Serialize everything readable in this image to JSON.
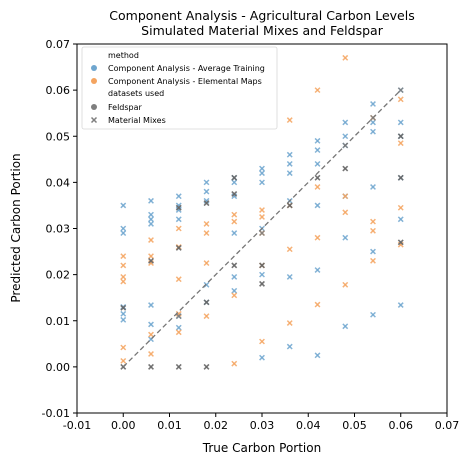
{
  "chart_data": {
    "type": "scatter",
    "title": "Component Analysis - Agricultural Carbon Levels",
    "subtitle": "Simulated Material Mixes and Feldspar",
    "xlabel": "True Carbon Portion",
    "ylabel": "Predicted Carbon Portion",
    "xlim": [
      -0.01,
      0.07
    ],
    "ylim": [
      -0.01,
      0.07
    ],
    "xticks": [
      "-0.01",
      "0.00",
      "0.01",
      "0.02",
      "0.03",
      "0.04",
      "0.05",
      "0.06",
      "0.07"
    ],
    "yticks": [
      "-0.01",
      "0.00",
      "0.01",
      "0.02",
      "0.03",
      "0.04",
      "0.05",
      "0.06",
      "0.07"
    ],
    "grid": false,
    "legend": {
      "placement": "top-left",
      "title_method": "method",
      "title_datasets": "datasets used",
      "entries": [
        {
          "label": "Component Analysis - Average Training",
          "color": "#6fa6cf",
          "marker": "circle"
        },
        {
          "label": "Component Analysis - Elemental Maps",
          "color": "#f4a460",
          "marker": "circle"
        },
        {
          "label": "Feldspar",
          "color": "#7f7f7f",
          "marker": "circle"
        },
        {
          "label": "Material Mixes",
          "color": "#7f7f7f",
          "marker": "x"
        }
      ]
    },
    "reference_line": {
      "x": [
        0,
        0.06
      ],
      "y": [
        0,
        0.06
      ],
      "style": "dashed",
      "color": "#777777"
    },
    "series": [
      {
        "name": "Component Analysis - Average Training",
        "color": "#6fa6cf",
        "x": [
          0,
          0,
          0,
          0,
          0,
          0,
          0.006,
          0.006,
          0.006,
          0.006,
          0.006,
          0.006,
          0.006,
          0.012,
          0.012,
          0.012,
          0.012,
          0.012,
          0.012,
          0.018,
          0.018,
          0.018,
          0.018,
          0.018,
          0.024,
          0.024,
          0.024,
          0.024,
          0.024,
          0.024,
          0.03,
          0.03,
          0.03,
          0.03,
          0.03,
          0.03,
          0.036,
          0.036,
          0.036,
          0.036,
          0.036,
          0.036,
          0.042,
          0.042,
          0.042,
          0.042,
          0.042,
          0.042,
          0.048,
          0.048,
          0.048,
          0.048,
          0.048,
          0.048,
          0.054,
          0.054,
          0.054,
          0.054,
          0.054,
          0.054,
          0.06,
          0.06,
          0.06,
          0.06,
          0.06,
          0.06
        ],
        "y": [
          0.035,
          0.03,
          0.029,
          0.0115,
          0.0102,
          0.013,
          0.036,
          0.033,
          0.032,
          0.031,
          0.0134,
          0.0092,
          0.006,
          0.037,
          0.035,
          0.034,
          0.032,
          0.011,
          0.0085,
          0.04,
          0.038,
          0.036,
          0.0178,
          0.014,
          0.041,
          0.04,
          0.037,
          0.029,
          0.0195,
          0.0165,
          0.043,
          0.042,
          0.04,
          0.03,
          0.02,
          0.002,
          0.046,
          0.044,
          0.042,
          0.036,
          0.0195,
          0.0044,
          0.049,
          0.047,
          0.044,
          0.035,
          0.021,
          0.0025,
          0.053,
          0.05,
          0.048,
          0.037,
          0.028,
          0.0088,
          0.057,
          0.053,
          0.051,
          0.039,
          0.025,
          0.0113,
          0.06,
          0.053,
          0.05,
          0.041,
          0.032,
          0.0134
        ]
      },
      {
        "name": "Component Analysis - Elemental Maps",
        "color": "#f4a460",
        "x": [
          0,
          0,
          0,
          0,
          0,
          0,
          0.006,
          0.006,
          0.006,
          0.006,
          0.006,
          0.012,
          0.012,
          0.012,
          0.012,
          0.012,
          0.018,
          0.018,
          0.018,
          0.018,
          0.024,
          0.024,
          0.024,
          0.024,
          0.03,
          0.03,
          0.03,
          0.03,
          0.03,
          0.036,
          0.036,
          0.036,
          0.036,
          0.042,
          0.042,
          0.042,
          0.042,
          0.048,
          0.048,
          0.048,
          0.048,
          0.054,
          0.054,
          0.054,
          0.054,
          0.06,
          0.06,
          0.06,
          0.06
        ],
        "y": [
          0.024,
          0.0195,
          0.0185,
          0.022,
          0.0042,
          0.0013,
          0.0275,
          0.024,
          0.0225,
          0.007,
          0.0028,
          0.03,
          0.026,
          0.019,
          0.0075,
          0.0115,
          0.031,
          0.029,
          0.0225,
          0.011,
          0.033,
          0.0315,
          0.0155,
          0.0007,
          0.034,
          0.0325,
          0.029,
          0.0055,
          0.022,
          0.0535,
          0.035,
          0.0255,
          0.0095,
          0.06,
          0.039,
          0.028,
          0.0135,
          0.067,
          0.037,
          0.0335,
          0.0178,
          0.054,
          0.0315,
          0.0295,
          0.023,
          0.058,
          0.0485,
          0.0345,
          0.0265
        ]
      },
      {
        "name": "Feldspar",
        "color": "#7f7f7f",
        "x": [
          0.012,
          0.03,
          0.048,
          0.054,
          0.06
        ],
        "y": [
          0.011,
          0.029,
          0.048,
          0.054,
          0.06
        ]
      },
      {
        "name": "Material Mixes",
        "color": "#666666",
        "x": [
          0,
          0,
          0.006,
          0.006,
          0.012,
          0.012,
          0.012,
          0.018,
          0.018,
          0.018,
          0.024,
          0.024,
          0.024,
          0.03,
          0.03,
          0.036,
          0.042,
          0.048,
          0.06,
          0.06,
          0.06
        ],
        "y": [
          0,
          0.0128,
          0,
          0.023,
          0,
          0.0258,
          0.0345,
          0,
          0.014,
          0.0355,
          0.022,
          0.0375,
          0.041,
          0.018,
          0.022,
          0.035,
          0.041,
          0.043,
          0.041,
          0.027,
          0.05
        ]
      }
    ]
  }
}
